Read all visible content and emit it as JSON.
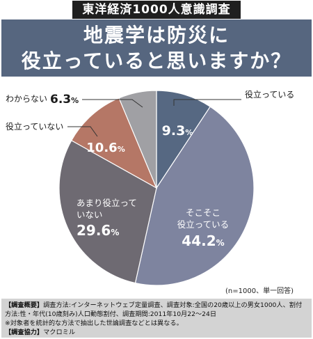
{
  "header": {
    "series_label": "東洋経済1000人意識調査",
    "title_line1": "地震学は防災に",
    "title_line2": "役立っていると思いますか？"
  },
  "chart_data": {
    "type": "pie",
    "start": "12 o'clock",
    "direction": "clockwise",
    "unit": "%",
    "slices": [
      {
        "label": "役立っている",
        "label_lines": [
          "役立っている"
        ],
        "value": 9.3,
        "display": "9.3",
        "color": "#566882",
        "label_position": "outside"
      },
      {
        "label": "そこそこ役立っている",
        "label_lines": [
          "そこそこ",
          "役立っている"
        ],
        "value": 44.2,
        "display": "44.2",
        "color": "#7e849f",
        "label_position": "inside"
      },
      {
        "label": "あまり役立っていない",
        "label_lines": [
          "あまり役立って",
          "いない"
        ],
        "value": 29.6,
        "display": "29.6",
        "color": "#6e6a72",
        "label_position": "inside"
      },
      {
        "label": "役立っていない",
        "label_lines": [
          "役立っていない"
        ],
        "value": 10.6,
        "display": "10.6",
        "color": "#b57766",
        "label_position": "outside"
      },
      {
        "label": "わからない",
        "label_lines": [
          "わからない"
        ],
        "value": 6.3,
        "display": "6.3",
        "color": "#a0a0a4",
        "label_position": "outside"
      }
    ]
  },
  "sample_note": "(n=1000、単一回答)",
  "notes": {
    "overview_tag": "【調査概要】",
    "overview_text_1": "調査方法:インターネットウェブ定量調査、調査対象:全国の20歳以上の男女1000人、割付",
    "overview_text_2": "方法:性・年代(10歳刻み)人口動態割付、調査期間:2011年10月22〜24日",
    "caveat": "※対象者を統計的な方法で抽出した世論調査などとは異なる。",
    "cooperation_tag": "【調査協力】",
    "cooperation_text": "マクロミル"
  }
}
